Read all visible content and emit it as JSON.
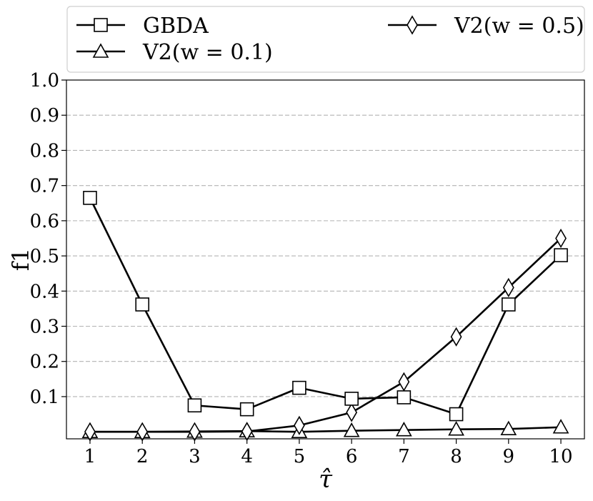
{
  "chart_data": {
    "type": "line",
    "title": "",
    "xlabel": "τ̂",
    "ylabel": "f1",
    "x": [
      1,
      2,
      3,
      4,
      5,
      6,
      7,
      8,
      9,
      10
    ],
    "xlim": [
      0.55,
      10.45
    ],
    "ylim": [
      -0.02,
      1.0
    ],
    "x_ticks": [
      "1",
      "2",
      "3",
      "4",
      "5",
      "6",
      "7",
      "8",
      "9",
      "10"
    ],
    "y_ticks": [
      "0.1",
      "0.2",
      "0.3",
      "0.4",
      "0.5",
      "0.6",
      "0.7",
      "0.8",
      "0.9",
      "1.0"
    ],
    "grid": "horizontal dashed",
    "legend_position": "top, above plot",
    "series": [
      {
        "name": "GBDA",
        "marker": "square",
        "values": [
          0.665,
          0.362,
          0.075,
          0.064,
          0.125,
          0.094,
          0.098,
          0.05,
          0.362,
          0.502
        ]
      },
      {
        "name": "V2(w = 0.1)",
        "marker": "triangle",
        "values": [
          0.0,
          0.0,
          0.001,
          0.002,
          0.0,
          0.003,
          0.005,
          0.007,
          0.008,
          0.013
        ]
      },
      {
        "name": "V2(w = 0.5)",
        "marker": "diamond",
        "values": [
          0.0,
          0.0,
          0.0,
          0.001,
          0.018,
          0.055,
          0.142,
          0.27,
          0.41,
          0.55
        ]
      }
    ]
  }
}
